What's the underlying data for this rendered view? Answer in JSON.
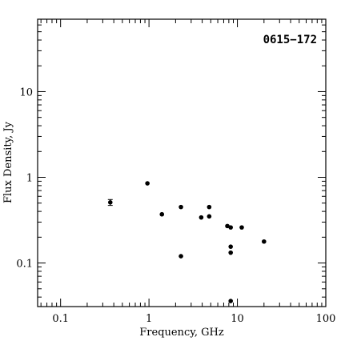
{
  "chart_data": {
    "type": "scatter",
    "title": "0615−172",
    "xlabel": "Frequency, GHz",
    "ylabel": "Flux Density, Jy",
    "xscale": "log",
    "yscale": "log",
    "xlim": [
      0.055,
      100
    ],
    "ylim": [
      0.031,
      70
    ],
    "x_tick_labels": [
      "0.1",
      "1",
      "10",
      "100"
    ],
    "y_tick_labels": [
      "0.1",
      "1",
      "10"
    ],
    "x_tick_values": [
      0.1,
      1,
      10,
      100
    ],
    "y_tick_values": [
      0.1,
      1,
      10
    ],
    "grid": false,
    "series": [
      {
        "points": [
          {
            "x": 0.365,
            "y": 0.51,
            "yerr_low": 0.47,
            "yerr_high": 0.55
          },
          {
            "x": 0.96,
            "y": 0.85
          },
          {
            "x": 1.4,
            "y": 0.37
          },
          {
            "x": 2.3,
            "y": 0.45
          },
          {
            "x": 2.3,
            "y": 0.12
          },
          {
            "x": 3.9,
            "y": 0.34
          },
          {
            "x": 4.8,
            "y": 0.45
          },
          {
            "x": 4.8,
            "y": 0.35
          },
          {
            "x": 7.7,
            "y": 0.27
          },
          {
            "x": 8.4,
            "y": 0.26
          },
          {
            "x": 8.4,
            "y": 0.155
          },
          {
            "x": 8.4,
            "y": 0.132
          },
          {
            "x": 8.4,
            "y": 0.036
          },
          {
            "x": 11.2,
            "y": 0.26
          },
          {
            "x": 20,
            "y": 0.178
          }
        ]
      }
    ]
  }
}
